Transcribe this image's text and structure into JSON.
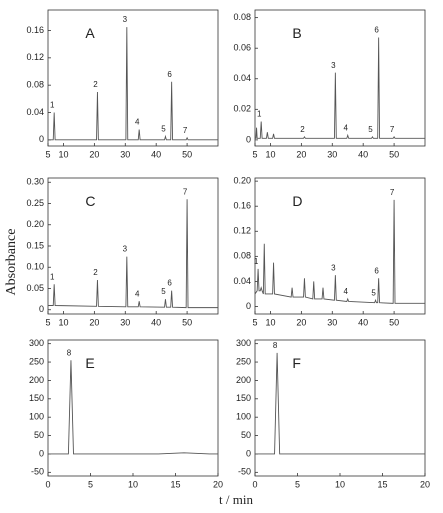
{
  "y_label": "Absorbance",
  "x_label": "t / min",
  "chart_data": [
    {
      "type": "line",
      "panel": "A",
      "xlim": [
        5,
        60
      ],
      "xticks": [
        5,
        10,
        20,
        30,
        40,
        50
      ],
      "ylim": [
        -0.009,
        0.19
      ],
      "yticks": [
        0,
        0.04,
        0.08,
        0.12,
        0.16
      ],
      "color": "#555555",
      "x": [
        5,
        6.7,
        7,
        7.3,
        20.7,
        21,
        21.3,
        30.2,
        30.5,
        30.8,
        34.2,
        34.5,
        34.8,
        42.7,
        43,
        43.3,
        44.7,
        45,
        45.3,
        49.7,
        50,
        50.3,
        60
      ],
      "values": [
        0,
        0,
        0.04,
        0,
        0,
        0.07,
        0,
        0,
        0.165,
        0,
        0,
        0.015,
        0,
        0,
        0.005,
        0,
        0,
        0.085,
        0,
        0,
        0.003,
        0,
        0
      ],
      "annotations": [
        {
          "text": "1",
          "x": 7,
          "y": 0.04
        },
        {
          "text": "2",
          "x": 21,
          "y": 0.07
        },
        {
          "text": "3",
          "x": 30.5,
          "y": 0.165
        },
        {
          "text": "4",
          "x": 34.5,
          "y": 0.015
        },
        {
          "text": "5",
          "x": 43,
          "y": 0.005
        },
        {
          "text": "6",
          "x": 45,
          "y": 0.085
        },
        {
          "text": "7",
          "x": 50,
          "y": 0.003
        }
      ]
    },
    {
      "type": "line",
      "panel": "B",
      "xlim": [
        5,
        60
      ],
      "xticks": [
        5,
        10,
        20,
        30,
        40,
        50
      ],
      "ylim": [
        -0.004,
        0.085
      ],
      "yticks": [
        0,
        0.02,
        0.04,
        0.06,
        0.08
      ],
      "color": "#555555",
      "x": [
        5,
        5.3,
        5.5,
        5.7,
        6.7,
        7,
        7.3,
        8.7,
        9,
        9.3,
        10.7,
        11,
        11.3,
        20.7,
        21,
        21.3,
        30.7,
        31,
        31.3,
        34.7,
        35,
        35.3,
        42.7,
        43,
        43.3,
        44.7,
        45,
        45.3,
        49.7,
        50,
        50.3,
        60
      ],
      "values": [
        0.001,
        0.001,
        0.008,
        0.001,
        0.001,
        0.012,
        0.001,
        0.001,
        0.005,
        0.001,
        0.001,
        0.004,
        0.001,
        0.001,
        0.002,
        0.001,
        0.001,
        0.044,
        0.001,
        0.001,
        0.003,
        0.001,
        0.001,
        0.002,
        0.001,
        0.001,
        0.067,
        0.001,
        0.001,
        0.002,
        0.001,
        0.001
      ],
      "annotations": [
        {
          "text": "1",
          "x": 7,
          "y": 0.012
        },
        {
          "text": "2",
          "x": 21,
          "y": 0.002
        },
        {
          "text": "3",
          "x": 31,
          "y": 0.044
        },
        {
          "text": "4",
          "x": 35,
          "y": 0.003
        },
        {
          "text": "5",
          "x": 43,
          "y": 0.002
        },
        {
          "text": "6",
          "x": 45,
          "y": 0.067
        },
        {
          "text": "7",
          "x": 50,
          "y": 0.002
        }
      ]
    },
    {
      "type": "line",
      "panel": "C",
      "xlim": [
        5,
        60
      ],
      "xticks": [
        5,
        10,
        20,
        30,
        40,
        50
      ],
      "ylim": [
        -0.01,
        0.31
      ],
      "yticks": [
        0,
        {
          "value": 0.05,
          "label": "0.05"
        },
        {
          "value": 0.1,
          "label": "0.10"
        },
        {
          "value": 0.15,
          "label": "0.15"
        },
        {
          "value": 0.2,
          "label": "0.20"
        },
        {
          "value": 0.25,
          "label": "0.25"
        },
        {
          "value": 0.3,
          "label": "0.30"
        }
      ],
      "color": "#555555",
      "x": [
        5,
        6.7,
        7,
        7.3,
        20.7,
        21,
        21.3,
        30.2,
        30.5,
        30.8,
        34.2,
        34.5,
        34.8,
        42.7,
        43,
        43.3,
        44.7,
        45,
        45.3,
        49.7,
        50,
        50.3,
        60
      ],
      "values": [
        0.01,
        0.01,
        0.06,
        0.01,
        0.008,
        0.07,
        0.008,
        0.007,
        0.125,
        0.007,
        0.007,
        0.02,
        0.007,
        0.006,
        0.025,
        0.006,
        0.006,
        0.045,
        0.006,
        0.005,
        0.26,
        0.005,
        0.005
      ],
      "annotations": [
        {
          "text": "1",
          "x": 7,
          "y": 0.06
        },
        {
          "text": "2",
          "x": 21,
          "y": 0.07
        },
        {
          "text": "3",
          "x": 30.5,
          "y": 0.125
        },
        {
          "text": "4",
          "x": 34.5,
          "y": 0.02
        },
        {
          "text": "5",
          "x": 43,
          "y": 0.025
        },
        {
          "text": "6",
          "x": 45,
          "y": 0.045
        },
        {
          "text": "7",
          "x": 50,
          "y": 0.26
        }
      ]
    },
    {
      "type": "line",
      "panel": "D",
      "xlim": [
        5,
        60
      ],
      "xticks": [
        5,
        10,
        20,
        30,
        40,
        50
      ],
      "ylim": [
        -0.012,
        0.205
      ],
      "yticks": [
        0,
        0.04,
        0.08,
        0.12,
        0.16,
        {
          "value": 0.2,
          "label": "0.20"
        }
      ],
      "color": "#555555",
      "x": [
        5,
        5.7,
        6,
        6.3,
        6.7,
        7,
        7.3,
        7.7,
        8,
        8.3,
        10.7,
        11,
        11.3,
        16.7,
        17,
        17.3,
        20.7,
        21,
        21.3,
        23.7,
        24,
        24.3,
        26.7,
        27,
        27.3,
        30.7,
        31,
        31.3,
        34.7,
        35,
        35.3,
        43.7,
        44,
        44.3,
        44.7,
        45,
        45.3,
        49.7,
        50,
        50.3,
        60
      ],
      "values": [
        0.02,
        0.025,
        0.06,
        0.025,
        0.025,
        0.03,
        0.025,
        0.02,
        0.1,
        0.02,
        0.02,
        0.07,
        0.02,
        0.015,
        0.03,
        0.015,
        0.015,
        0.045,
        0.015,
        0.012,
        0.04,
        0.012,
        0.012,
        0.03,
        0.012,
        0.01,
        0.05,
        0.01,
        0.008,
        0.012,
        0.008,
        0.006,
        0.01,
        0.006,
        0.006,
        0.045,
        0.006,
        0.005,
        0.17,
        0.005,
        0.005
      ],
      "annotations": [
        {
          "text": "1",
          "x": 6,
          "y": 0.06
        },
        {
          "text": "3",
          "x": 31,
          "y": 0.05
        },
        {
          "text": "4",
          "x": 35,
          "y": 0.012
        },
        {
          "text": "5",
          "x": 44,
          "y": 0.01
        },
        {
          "text": "6",
          "x": 45,
          "y": 0.045
        },
        {
          "text": "7",
          "x": 50,
          "y": 0.17
        }
      ]
    },
    {
      "type": "line",
      "panel": "E",
      "xlim": [
        0,
        20
      ],
      "xticks": [
        0,
        5,
        10,
        15,
        20
      ],
      "ylim": [
        -60,
        310
      ],
      "yticks": [
        -50,
        0,
        50,
        100,
        150,
        200,
        250,
        300
      ],
      "color": "#555555",
      "x": [
        0,
        2.4,
        2.7,
        3.0,
        13,
        16,
        19,
        20
      ],
      "values": [
        0,
        0,
        255,
        0,
        0,
        3,
        0,
        0
      ],
      "annotations": [
        {
          "text": "8",
          "x": 2.7,
          "y": 255
        }
      ]
    },
    {
      "type": "line",
      "panel": "F",
      "xlim": [
        0,
        20
      ],
      "xticks": [
        0,
        5,
        10,
        15,
        20
      ],
      "ylim": [
        -60,
        310
      ],
      "yticks": [
        -50,
        0,
        50,
        100,
        150,
        200,
        250,
        300
      ],
      "color": "#555555",
      "x": [
        0,
        2.3,
        2.6,
        2.9,
        20
      ],
      "values": [
        0,
        0,
        275,
        0,
        0
      ],
      "annotations": [
        {
          "text": "8",
          "x": 2.6,
          "y": 275
        }
      ]
    }
  ]
}
